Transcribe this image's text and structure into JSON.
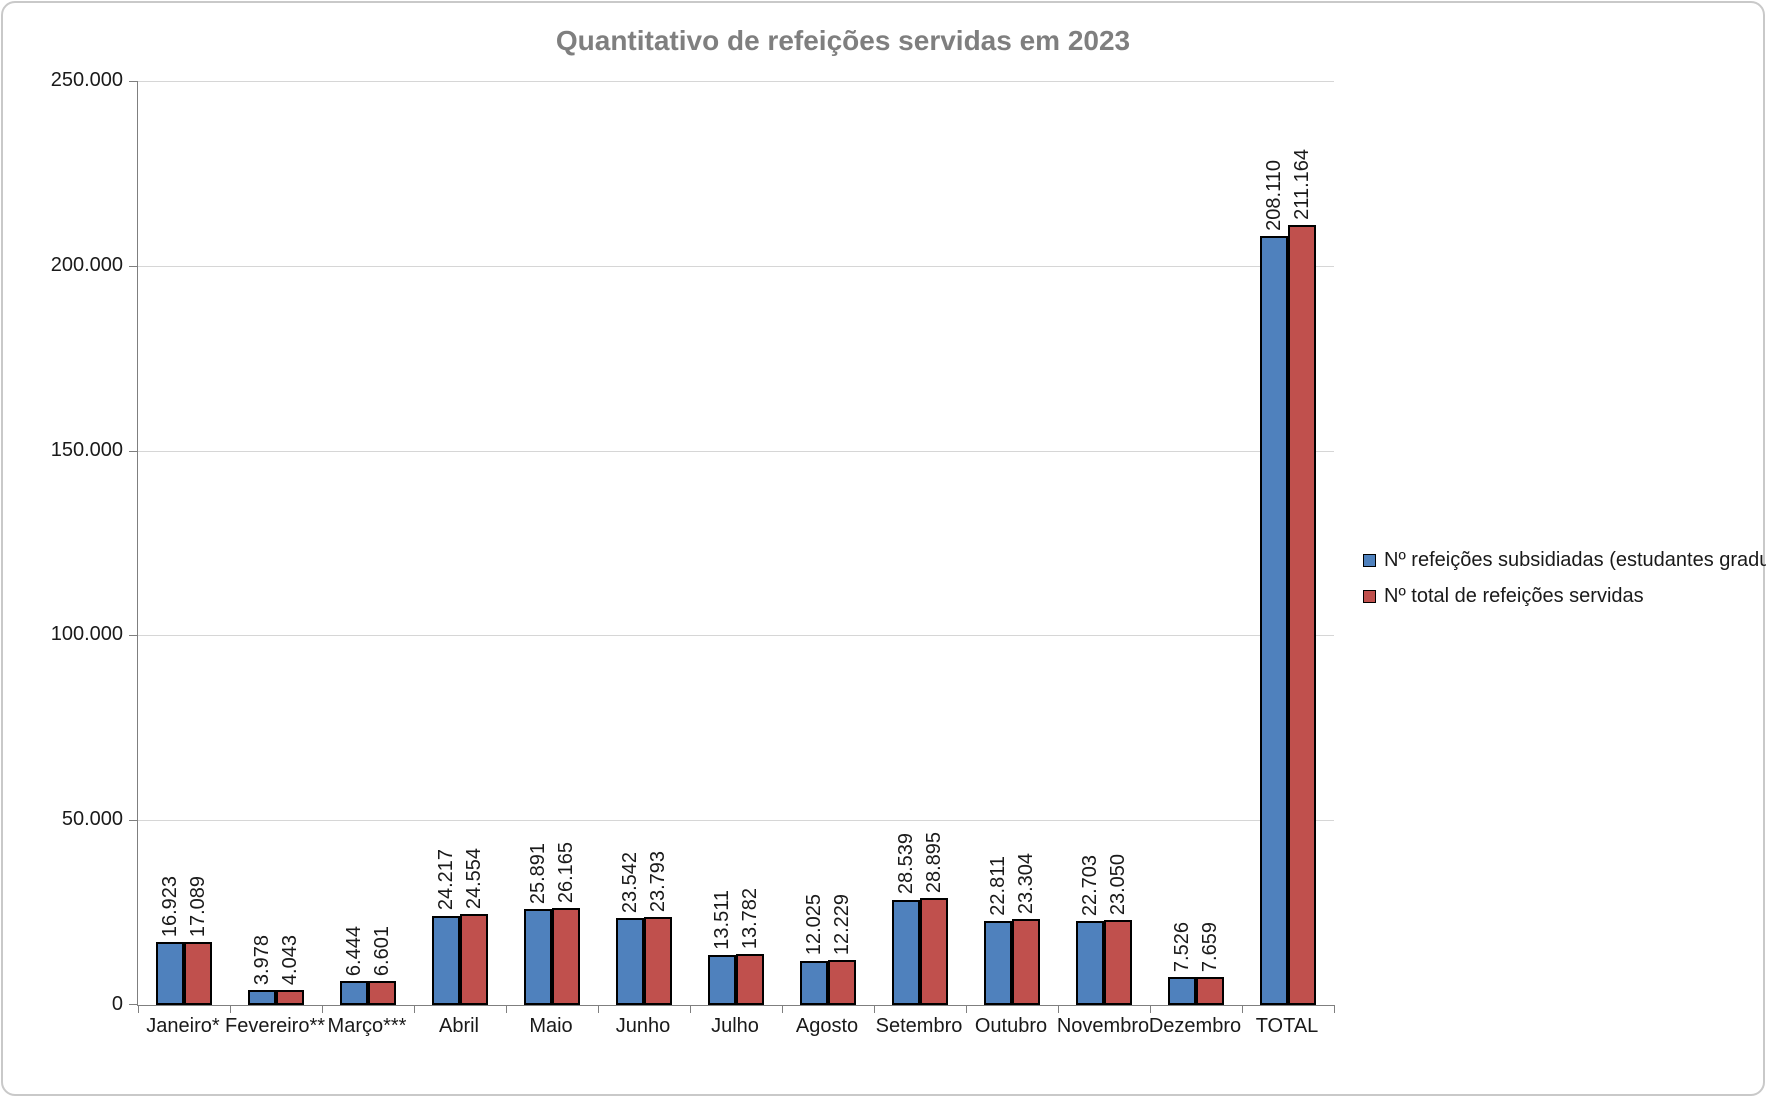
{
  "title": "Quantitativo de refeições servidas em 2023",
  "chart_data": {
    "type": "bar",
    "categories": [
      "Janeiro*",
      "Fevereiro**",
      "Março***",
      "Abril",
      "Maio",
      "Junho",
      "Julho",
      "Agosto",
      "Setembro",
      "Outubro",
      "Novembro",
      "Dezembro",
      "TOTAL"
    ],
    "series": [
      {
        "name": "Nº refeições subsidiadas (estudantes graduação)",
        "color": "#4F81BD",
        "border_color": "#000000",
        "values": [
          16923,
          3978,
          6444,
          24217,
          25891,
          23542,
          13511,
          12025,
          28539,
          22811,
          22703,
          7526,
          208110
        ]
      },
      {
        "name": "Nº total de refeições servidas",
        "color": "#C0504D",
        "border_color": "#000000",
        "values": [
          17089,
          4043,
          6601,
          24554,
          26165,
          23793,
          13782,
          12229,
          28895,
          23304,
          23050,
          7659,
          211164
        ]
      }
    ],
    "data_labels": [
      "16.923",
      "17.089",
      "3.978",
      "4.043",
      "6.444",
      "6.601",
      "24.217",
      "24.554",
      "25.891",
      "26.165",
      "23.542",
      "23.793",
      "13.511",
      "13.782",
      "12.025",
      "12.229",
      "28.539",
      "28.895",
      "22.811",
      "23.304",
      "22.703",
      "23.050",
      "7.526",
      "7.659",
      "208.110",
      "211.164"
    ],
    "data_label_rotation": 90,
    "xlabel": "",
    "ylabel": "",
    "ylim": [
      0,
      250000
    ],
    "ytick_step": 50000,
    "ytick_labels": [
      "0",
      "50.000",
      "100.000",
      "150.000",
      "200.000",
      "250.000"
    ],
    "grid": true,
    "legend_position": "right",
    "title_color": "#7F7F7F"
  }
}
